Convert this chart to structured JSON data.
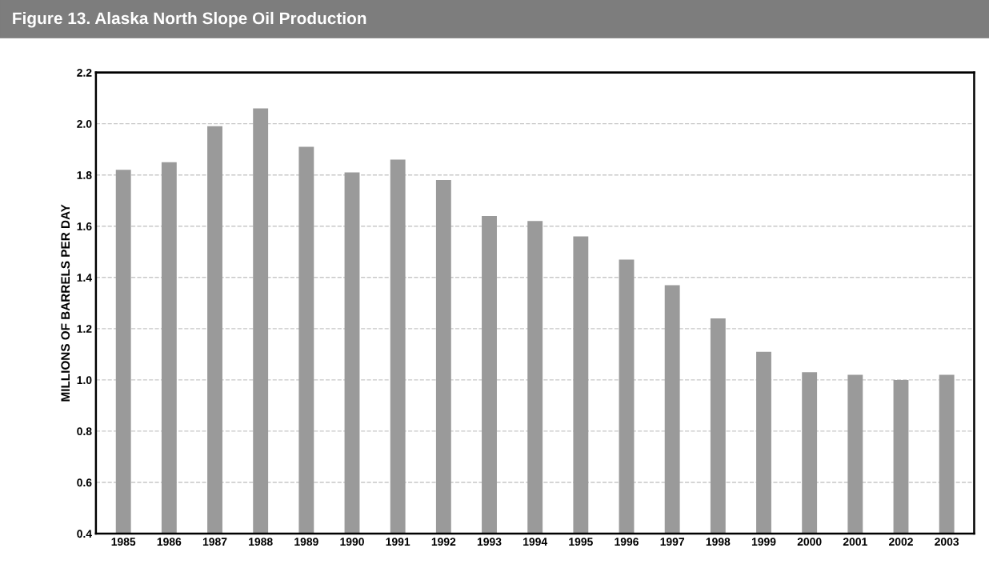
{
  "chart_data": {
    "type": "bar",
    "title": "Figure 13. Alaska North Slope Oil Production",
    "ylabel": "MILLIONS OF BARRELS PER DAY",
    "categories": [
      "1985",
      "1986",
      "1987",
      "1988",
      "1989",
      "1990",
      "1991",
      "1992",
      "1993",
      "1994",
      "1995",
      "1996",
      "1997",
      "1998",
      "1999",
      "2000",
      "2001",
      "2002",
      "2003"
    ],
    "values": [
      1.82,
      1.85,
      1.99,
      2.06,
      1.91,
      1.81,
      1.86,
      1.78,
      1.64,
      1.62,
      1.56,
      1.47,
      1.37,
      1.24,
      1.11,
      1.03,
      1.02,
      1.0,
      1.02
    ],
    "color": "#9a9a9a",
    "ylim": [
      0.4,
      2.2
    ],
    "yticks": [
      {
        "value": 0.4,
        "label": "0.4"
      },
      {
        "value": 0.6,
        "label": "0.6"
      },
      {
        "value": 0.8,
        "label": "0.8"
      },
      {
        "value": 1.0,
        "label": "1.0"
      },
      {
        "value": 1.2,
        "label": "1.2"
      },
      {
        "value": 1.4,
        "label": "1.4"
      },
      {
        "value": 1.6,
        "label": "1.6"
      },
      {
        "value": 1.8,
        "label": "1.8"
      },
      {
        "value": 2.0,
        "label": "2.0"
      },
      {
        "value": 2.2,
        "label": "2.2"
      }
    ],
    "grid": "y"
  }
}
